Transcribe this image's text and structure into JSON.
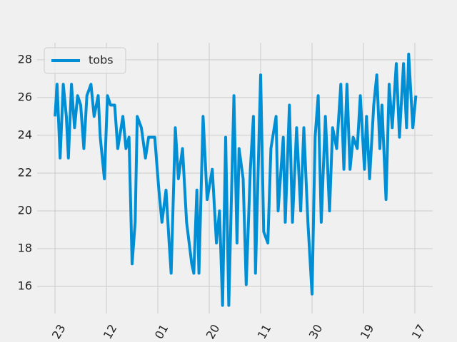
{
  "chart_data": {
    "type": "line",
    "x": [
      0,
      2,
      5,
      8,
      11,
      13,
      16,
      19,
      22,
      25,
      28,
      31,
      35,
      38,
      42,
      44,
      48,
      51,
      54,
      58,
      61,
      66,
      69,
      72,
      75,
      78,
      80,
      84,
      88,
      91,
      97,
      101,
      104,
      108,
      111,
      113,
      117,
      120,
      124,
      128,
      133,
      135,
      138,
      140,
      144,
      148,
      153,
      157,
      160,
      163,
      166,
      169,
      174,
      177,
      179,
      183,
      186,
      190,
      193,
      195,
      200,
      203,
      207,
      210,
      215,
      217,
      222,
      224,
      228,
      231,
      235,
      239,
      242,
      246,
      250,
      253,
      256,
      259,
      263,
      267,
      270,
      274,
      278,
      281,
      284,
      287,
      290,
      294,
      297,
      301,
      303,
      306,
      310,
      313,
      316,
      318,
      322,
      325,
      328,
      332,
      335,
      339,
      342,
      344,
      348,
      351
    ],
    "series": [
      {
        "name": "tobs",
        "color": "#008fd5",
        "values": [
          25,
          26.7,
          22.8,
          26.7,
          25,
          22.8,
          26.7,
          24.4,
          26.1,
          25.6,
          23.3,
          26.1,
          26.7,
          25,
          26.1,
          23.9,
          21.7,
          26.1,
          25.6,
          25.6,
          23.3,
          25,
          23.3,
          23.9,
          17.2,
          19.4,
          25,
          24.4,
          22.8,
          23.9,
          23.9,
          21.1,
          19.4,
          21.1,
          18.3,
          16.7,
          24.4,
          21.7,
          23.3,
          19.4,
          17.2,
          16.7,
          21.1,
          16.7,
          25,
          20.6,
          22.2,
          18.3,
          20,
          15,
          23.9,
          15,
          26.1,
          18.3,
          23.3,
          21.7,
          16.1,
          22.2,
          25,
          16.7,
          27.2,
          18.9,
          18.3,
          23.3,
          25,
          20,
          23.9,
          19.4,
          25.6,
          19.4,
          24.4,
          20,
          24.4,
          19.4,
          15.6,
          23.9,
          26.1,
          19.4,
          25,
          20,
          24.4,
          23.3,
          26.7,
          22.2,
          26.7,
          22.2,
          23.9,
          23.3,
          26.1,
          22.2,
          25,
          21.7,
          25.6,
          27.2,
          23.3,
          25.6,
          20.6,
          26.7,
          24.4,
          27.8,
          23.9,
          27.8,
          24.4,
          28.3,
          24.4,
          26.1
        ]
      }
    ],
    "xlim": [
      -17.4,
      367.4
    ],
    "xticks": [
      {
        "value": 0,
        "label": "23"
      },
      {
        "value": 50,
        "label": "12"
      },
      {
        "value": 100,
        "label": "01"
      },
      {
        "value": 150,
        "label": "20"
      },
      {
        "value": 200,
        "label": "11"
      },
      {
        "value": 250,
        "label": "30"
      },
      {
        "value": 300,
        "label": "19"
      },
      {
        "value": 350,
        "label": "17"
      }
    ],
    "ylim": [
      14.57,
      28.9
    ],
    "yticks": [
      16,
      18,
      20,
      22,
      24,
      26,
      28
    ],
    "grid": true,
    "legend": "upper left"
  }
}
